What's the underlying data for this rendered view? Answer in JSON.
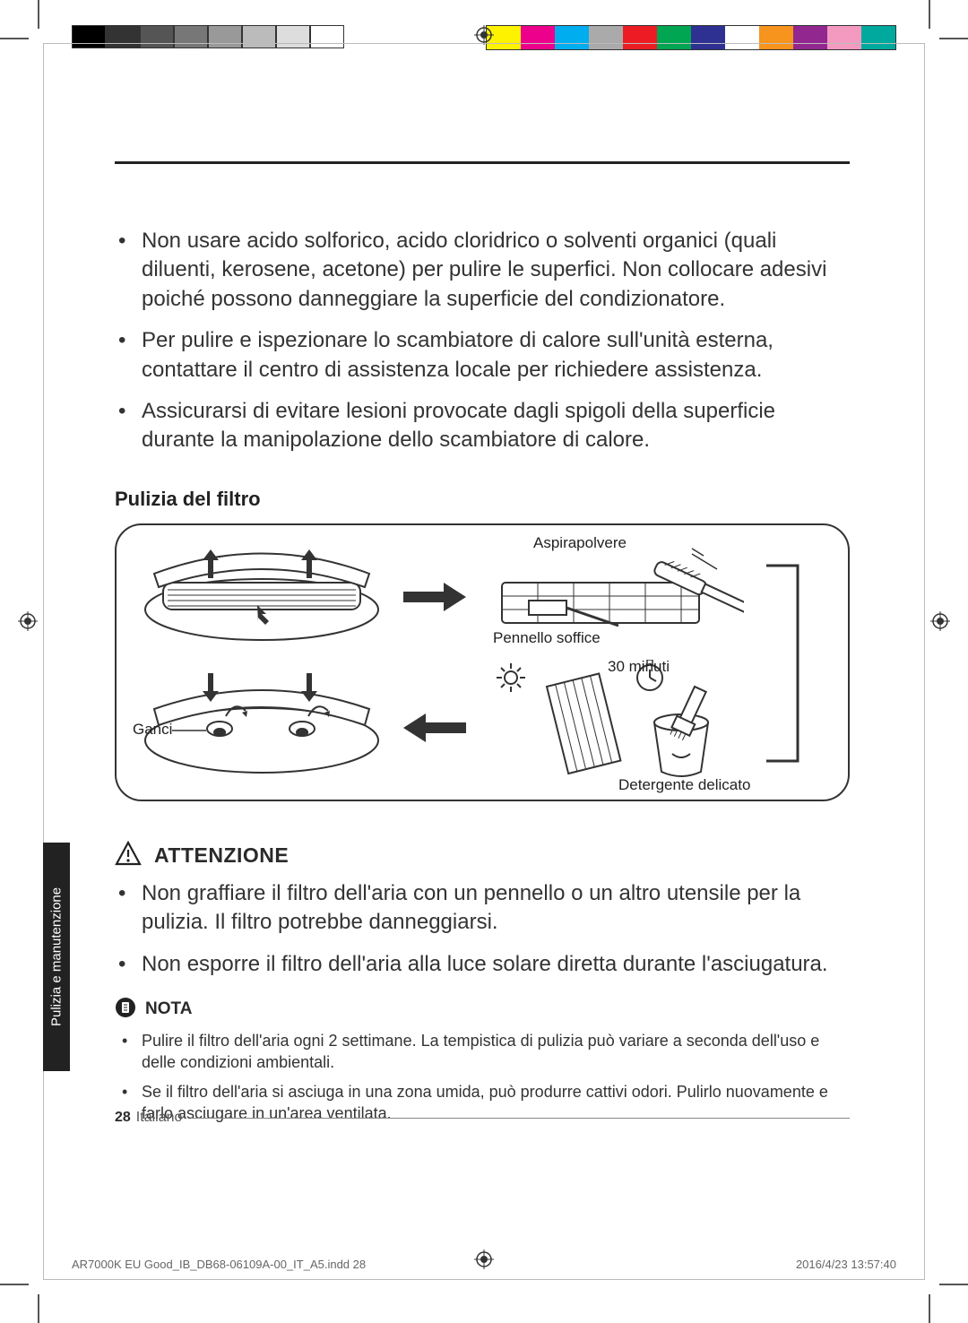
{
  "printer_marks": {
    "gray_swatches": [
      "#000000",
      "#333333",
      "#555555",
      "#777777",
      "#999999",
      "#bbbbbb",
      "#dddddd",
      "#ffffff"
    ],
    "color_swatches": [
      "#fff200",
      "#ec008c",
      "#00aeef",
      "#aaaaaa",
      "#ed1c24",
      "#00a651",
      "#2e3192",
      "#ffffff",
      "#f7941d",
      "#92278f",
      "#f49ac1",
      "#00a99d"
    ]
  },
  "bullets": {
    "b1": "Non usare acido solforico, acido cloridrico o solventi organici (quali diluenti, kerosene, acetone) per pulire le superfici. Non collocare adesivi poiché possono danneggiare la superficie del condizionatore.",
    "b2": "Per pulire e ispezionare lo scambiatore di calore sull'unità esterna, contattare il centro di assistenza locale per richiedere assistenza.",
    "b3": "Assicurarsi di evitare lesioni provocate dagli spigoli della superficie durante la manipolazione dello scambiatore di calore."
  },
  "subheading": "Pulizia del filtro",
  "diagram": {
    "labels": {
      "vacuum": "Aspirapolvere",
      "brush": "Pennello soffice",
      "time": "30 minuti",
      "detergent": "Detergente delicato",
      "hooks": "Ganci"
    },
    "stroke": "#333333",
    "fill": "#ffffff"
  },
  "attention": {
    "title": "ATTENZIONE",
    "items": {
      "a1": "Non graffiare il filtro dell'aria con un pennello o un altro utensile per la pulizia. Il filtro potrebbe danneggiarsi.",
      "a2": "Non esporre il filtro dell'aria alla luce solare diretta durante l'asciugatura."
    }
  },
  "note": {
    "title": "NOTA",
    "items": {
      "n1": "Pulire il filtro dell'aria ogni 2 settimane. La tempistica di pulizia può variare a seconda dell'uso e delle condizioni ambientali.",
      "n2": "Se il filtro dell'aria si asciuga in una zona umida, può produrre cattivi odori. Pulirlo nuovamente e farlo asciugare in un'area ventilata."
    }
  },
  "side_tab": "Pulizia e manutenzione",
  "footer": {
    "page": "28",
    "lang": "Italiano"
  },
  "imprint": {
    "file": "AR7000K EU Good_IB_DB68-06109A-00_IT_A5.indd   28",
    "datetime": "2016/4/23   13:57:40"
  }
}
